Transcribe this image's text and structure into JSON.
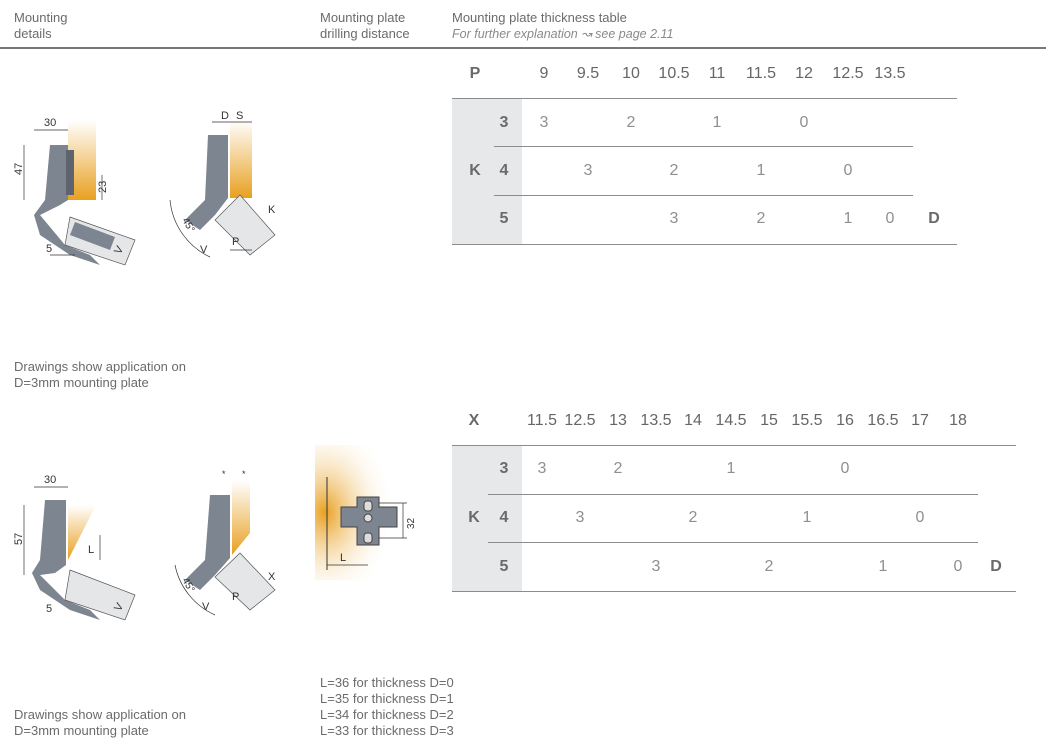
{
  "header": {
    "col1": [
      "Mounting",
      "details"
    ],
    "col2": [
      "Mounting plate",
      "drilling distance"
    ],
    "col3_title": "Mounting plate thickness table",
    "col3_subtitle": "For further explanation ↝ see page 2.11"
  },
  "notes": {
    "top": [
      "Drawings show application on",
      "D=3mm mounting plate"
    ],
    "bottom": [
      "Drawings show application on",
      "D=3mm mounting plate"
    ],
    "plate_L": [
      "L=36 for thickness D=0",
      "L=35 for thickness D=1",
      "L=34 for thickness D=2",
      "L=33 for thickness D=3"
    ]
  },
  "drawing_labels": {
    "top_left": {
      "width": "30",
      "height": "47",
      "plate": "23",
      "gap": "5",
      "v": "V"
    },
    "top_right": {
      "d": "D",
      "s": "S",
      "k": "K",
      "p": "P",
      "v": "V",
      "angle": "45°"
    },
    "bottom_left": {
      "width": "30",
      "height": "57",
      "l": "L",
      "gap": "5",
      "v": "V"
    },
    "bottom_right": {
      "x": "X",
      "p": "P",
      "v": "V",
      "angle": "45°",
      "star": "*"
    },
    "plate": {
      "l": "L",
      "spacing": "32"
    }
  },
  "tables": [
    {
      "axis_label": "P",
      "row_group_label": "K",
      "result_label": "D",
      "columns": [
        "9",
        "9.5",
        "10",
        "10.5",
        "11",
        "11.5",
        "12",
        "12.5",
        "13.5"
      ],
      "rows": [
        {
          "k": "3",
          "cells": [
            "3",
            "",
            "2",
            "",
            "1",
            "",
            "0",
            "",
            ""
          ]
        },
        {
          "k": "4",
          "cells": [
            "",
            "3",
            "",
            "2",
            "",
            "1",
            "",
            "0",
            ""
          ]
        },
        {
          "k": "5",
          "cells": [
            "",
            "",
            "",
            "3",
            "",
            "2",
            "",
            "1",
            "0"
          ]
        }
      ]
    },
    {
      "axis_label": "X",
      "row_group_label": "K",
      "result_label": "D",
      "columns": [
        "11.5",
        "12.5",
        "13",
        "13.5",
        "14",
        "14.5",
        "15",
        "15.5",
        "16",
        "16.5",
        "17",
        "18"
      ],
      "rows": [
        {
          "k": "3",
          "cells": [
            "3",
            "",
            "2",
            "",
            "",
            "1",
            "",
            "",
            "0",
            "",
            "",
            ""
          ]
        },
        {
          "k": "4",
          "cells": [
            "",
            "3",
            "",
            "",
            "2",
            "",
            "",
            "1",
            "",
            "",
            "0",
            ""
          ]
        },
        {
          "k": "5",
          "cells": [
            "",
            "",
            "",
            "3",
            "",
            "",
            "2",
            "",
            "",
            "1",
            "",
            "0"
          ]
        }
      ]
    }
  ],
  "colors": {
    "accent_orange": "#e8a020",
    "hinge_gray": "#7d8590",
    "table_shade": "#e7e8ea"
  }
}
